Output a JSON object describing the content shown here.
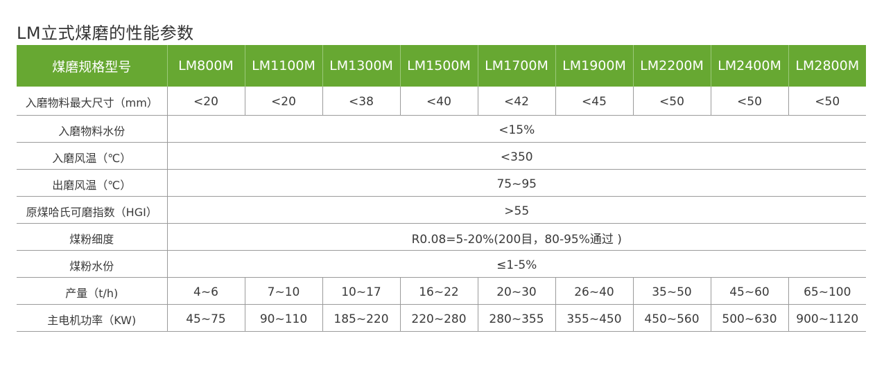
{
  "title": "LM立式煤磨的性能参数",
  "colors": {
    "header_bg": "#67a832",
    "header_text": "#ffffff"
  },
  "table": {
    "header": [
      "煤磨规格型号",
      "LM800M",
      "LM1100M",
      "LM1300M",
      "LM1500M",
      "LM1700M",
      "LM1900M",
      "LM2200M",
      "LM2400M",
      "LM2800M"
    ],
    "rows": [
      {
        "label": "入磨物料最大尺寸（mm）",
        "values": [
          "<20",
          "<20",
          "<38",
          "<40",
          "<42",
          "<45",
          "<50",
          "<50",
          "<50"
        ]
      },
      {
        "label": "入磨物料水份",
        "span": "<15%"
      },
      {
        "label": "入磨风温（℃）",
        "span": "<350"
      },
      {
        "label": "出磨风温（℃）",
        "span": "75~95"
      },
      {
        "label": "原煤哈氏可磨指数（HGI）",
        "span": ">55"
      },
      {
        "label": "煤粉细度",
        "span": "R0.08=5-20%(200目，80-95%通过 )"
      },
      {
        "label": "煤粉水份",
        "span": "≤1-5%"
      },
      {
        "label": "产量（t/h)",
        "values": [
          "4~6",
          "7~10",
          "10~17",
          "16~22",
          "20~30",
          "26~40",
          "35~50",
          "45~60",
          "65~100"
        ]
      },
      {
        "label": "主电机功率（KW)",
        "values": [
          "45~75",
          "90~110",
          "185~220",
          "220~280",
          "280~355",
          "355~450",
          "450~560",
          "500~630",
          "900~1120"
        ]
      }
    ]
  }
}
